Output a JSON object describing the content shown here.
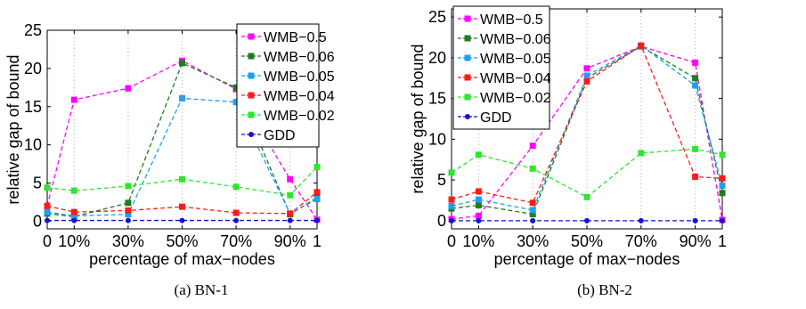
{
  "chart_data": [
    {
      "type": "line",
      "caption": "(a) BN-1",
      "xlabel": "percentage of max−nodes",
      "ylabel": "relative gap of bound",
      "x": [
        0,
        10,
        30,
        50,
        70,
        90,
        100
      ],
      "x_tick_labels": [
        "0",
        "10%",
        "30%",
        "50%",
        "70%",
        "90%",
        "1"
      ],
      "ylim": [
        -1,
        25
      ],
      "y_ticks": [
        0,
        5,
        10,
        15,
        20,
        25
      ],
      "grid": "vertical dotted",
      "legend_position": "top-right",
      "series": [
        {
          "name": "WMB−0.5",
          "color": "#ff00ff",
          "marker": "square",
          "values": [
            2.0,
            15.9,
            17.4,
            21.0,
            17.3,
            5.5,
            0.2
          ]
        },
        {
          "name": "WMB−0.06",
          "color": "#1e7d1e",
          "marker": "square",
          "values": [
            1.0,
            0.6,
            2.4,
            20.7,
            17.5,
            0.9,
            3.1
          ]
        },
        {
          "name": "WMB−0.05",
          "color": "#1ea0f0",
          "marker": "square",
          "values": [
            1.2,
            0.7,
            0.9,
            16.1,
            15.6,
            1.0,
            2.9
          ]
        },
        {
          "name": "WMB−0.04",
          "color": "#ff1a1a",
          "marker": "square",
          "values": [
            2.0,
            1.2,
            1.4,
            1.9,
            1.1,
            1.0,
            3.8
          ]
        },
        {
          "name": "WMB−0.02",
          "color": "#2ee62e",
          "marker": "square",
          "values": [
            4.4,
            4.0,
            4.6,
            5.5,
            4.5,
            3.4,
            7.1
          ]
        },
        {
          "name": "GDD",
          "color": "#1414c8",
          "marker": "circle",
          "values": [
            0.1,
            0.1,
            0.1,
            0.1,
            0.1,
            0.1,
            0.1
          ]
        }
      ]
    },
    {
      "type": "line",
      "caption": "(b) BN-2",
      "xlabel": "percentage of max−nodes",
      "ylabel": "relative gap of bound",
      "x": [
        0,
        10,
        30,
        50,
        70,
        90,
        100
      ],
      "x_tick_labels": [
        "0",
        "10%",
        "30%",
        "50%",
        "70%",
        "90%",
        "1"
      ],
      "ylim": [
        -1,
        26
      ],
      "y_ticks": [
        0,
        5,
        10,
        15,
        20,
        25
      ],
      "grid": "vertical dotted",
      "legend_position": "top-left",
      "series": [
        {
          "name": "WMB−0.5",
          "color": "#ff00ff",
          "marker": "square",
          "values": [
            0.2,
            0.6,
            9.2,
            18.7,
            21.4,
            19.4,
            0.1
          ]
        },
        {
          "name": "WMB−0.06",
          "color": "#1e7d1e",
          "marker": "square",
          "values": [
            1.5,
            1.9,
            0.8,
            17.5,
            21.4,
            17.5,
            3.4
          ]
        },
        {
          "name": "WMB−0.05",
          "color": "#1ea0f0",
          "marker": "square",
          "values": [
            1.8,
            2.6,
            1.3,
            17.8,
            21.5,
            16.6,
            4.3
          ]
        },
        {
          "name": "WMB−0.04",
          "color": "#ff1a1a",
          "marker": "square",
          "values": [
            2.6,
            3.6,
            2.2,
            17.1,
            21.5,
            5.4,
            5.2
          ]
        },
        {
          "name": "WMB−0.02",
          "color": "#2ee62e",
          "marker": "square",
          "values": [
            5.9,
            8.1,
            6.4,
            2.9,
            8.3,
            8.8,
            8.1
          ]
        },
        {
          "name": "GDD",
          "color": "#1414c8",
          "marker": "circle",
          "values": [
            0.0,
            0.0,
            0.0,
            0.0,
            0.0,
            0.0,
            0.0
          ]
        }
      ]
    }
  ]
}
